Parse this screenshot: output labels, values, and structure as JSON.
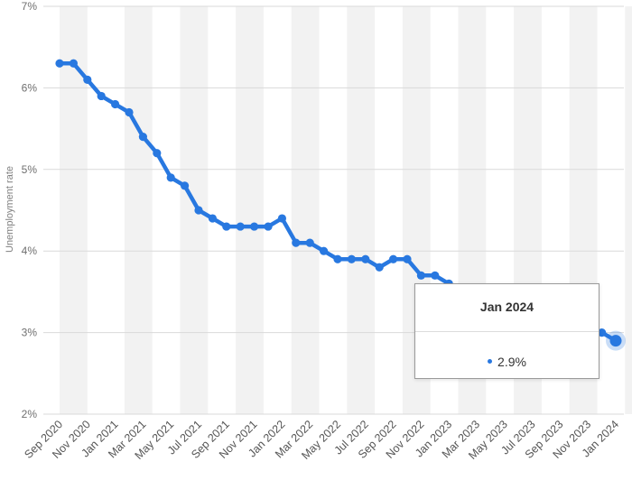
{
  "chart_data": {
    "type": "line",
    "ylabel": "Unemployment rate",
    "ylim": [
      2,
      7
    ],
    "yticks": [
      "2%",
      "3%",
      "4%",
      "5%",
      "6%",
      "7%"
    ],
    "grid": true,
    "x_tick_labels": [
      "Sep 2020",
      "Nov 2020",
      "Jan 2021",
      "Mar 2021",
      "May 2021",
      "Jul 2021",
      "Sep 2021",
      "Nov 2021",
      "Jan 2022",
      "Mar 2022",
      "May 2022",
      "Jul 2022",
      "Sep 2022",
      "Nov 2022",
      "Jan 2023",
      "Mar 2023",
      "May 2023",
      "Jul 2023",
      "Sep 2023",
      "Nov 2023",
      "Jan 2024"
    ],
    "x": [
      "Sep 2020",
      "Oct 2020",
      "Nov 2020",
      "Dec 2020",
      "Jan 2021",
      "Feb 2021",
      "Mar 2021",
      "Apr 2021",
      "May 2021",
      "Jun 2021",
      "Jul 2021",
      "Aug 2021",
      "Sep 2021",
      "Oct 2021",
      "Nov 2021",
      "Dec 2021",
      "Jan 2022",
      "Feb 2022",
      "Mar 2022",
      "Apr 2022",
      "May 2022",
      "Jun 2022",
      "Jul 2022",
      "Aug 2022",
      "Sep 2022",
      "Oct 2022",
      "Nov 2022",
      "Dec 2022",
      "Jan 2023",
      "Feb 2023",
      "Mar 2023",
      "Apr 2023",
      "May 2023",
      "Jun 2023",
      "Jul 2023",
      "Aug 2023",
      "Sep 2023",
      "Oct 2023",
      "Nov 2023",
      "Dec 2023",
      "Jan 2024"
    ],
    "series": [
      {
        "color": "#2878e0",
        "values": [
          6.3,
          6.3,
          6.1,
          5.9,
          5.8,
          5.7,
          5.4,
          5.2,
          4.9,
          4.8,
          4.5,
          4.4,
          4.3,
          4.3,
          4.3,
          4.3,
          4.4,
          4.1,
          4.1,
          4.0,
          3.9,
          3.9,
          3.9,
          3.8,
          3.9,
          3.9,
          3.7,
          3.7,
          3.6,
          3.5,
          3.4,
          3.3,
          3.2,
          3.2,
          3.1,
          3.1,
          3.0,
          3.0,
          3.0,
          3.0,
          2.9
        ]
      }
    ]
  },
  "tooltip": {
    "title": "Jan 2024",
    "value": "2.9%"
  }
}
